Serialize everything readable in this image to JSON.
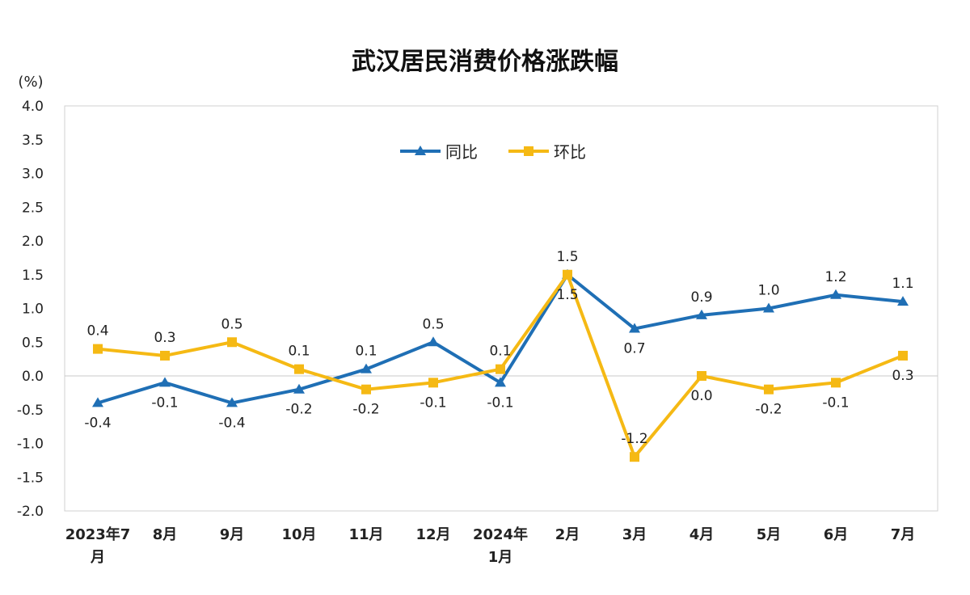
{
  "chart_data": {
    "type": "line",
    "title": "武汉居民消费价格涨跌幅",
    "ylabel": "(%)",
    "xlabel": "",
    "ylim": [
      -2.0,
      4.0
    ],
    "ytick_step": 0.5,
    "grid": false,
    "legend_position": "top-center",
    "categories": [
      [
        "2023年7",
        "月"
      ],
      [
        "8月"
      ],
      [
        "9月"
      ],
      [
        "10月"
      ],
      [
        "11月"
      ],
      [
        "12月"
      ],
      [
        "2024年",
        "1月"
      ],
      [
        "2月"
      ],
      [
        "3月"
      ],
      [
        "4月"
      ],
      [
        "5月"
      ],
      [
        "6月"
      ],
      [
        "7月"
      ]
    ],
    "series": [
      {
        "name": "同比",
        "color": "#1f6fb5",
        "marker": "triangle",
        "values": [
          -0.4,
          -0.1,
          -0.4,
          -0.2,
          0.1,
          0.5,
          -0.1,
          1.5,
          0.7,
          0.9,
          1.0,
          1.2,
          1.1
        ],
        "labels": [
          "-0.4",
          "-0.1",
          "-0.4",
          "-0.2",
          "0.1",
          "0.5",
          "-0.1",
          "1.5",
          "0.7",
          "0.9",
          "1.0",
          "1.2",
          "1.1"
        ],
        "label_pos": [
          "below",
          "below",
          "below",
          "below",
          "above",
          "above",
          "below",
          "above",
          "below",
          "above",
          "above",
          "above",
          "above"
        ]
      },
      {
        "name": "环比",
        "color": "#f5b914",
        "marker": "square",
        "values": [
          0.4,
          0.3,
          0.5,
          0.1,
          -0.2,
          -0.1,
          0.1,
          1.5,
          -1.2,
          0.0,
          -0.2,
          -0.1,
          0.3
        ],
        "labels": [
          "0.4",
          "0.3",
          "0.5",
          "0.1",
          "-0.2",
          "-0.1",
          "0.1",
          "1.5",
          "-1.2",
          "0.0",
          "-0.2",
          "-0.1",
          "0.3"
        ],
        "label_pos": [
          "above",
          "above",
          "above",
          "above",
          "below",
          "below",
          "above",
          "below",
          "above",
          "below",
          "below",
          "below",
          "below"
        ]
      }
    ]
  }
}
